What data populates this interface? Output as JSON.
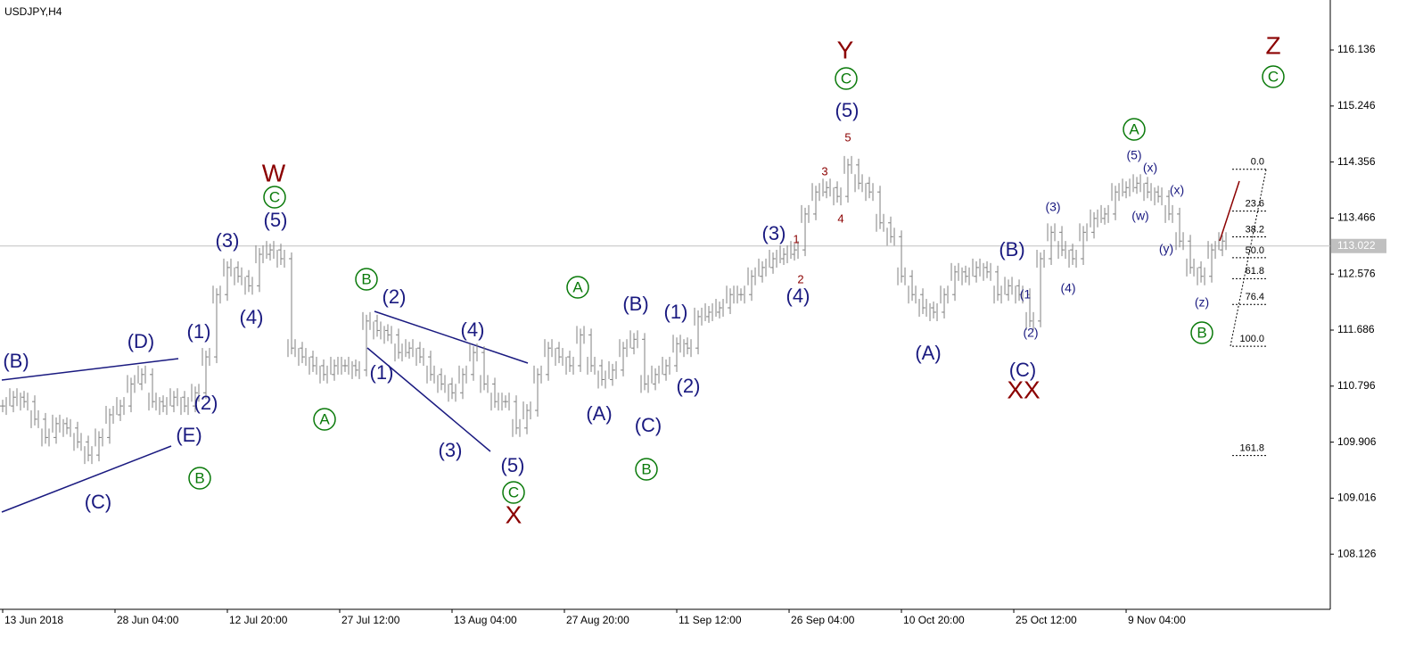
{
  "chart_data": {
    "type": "ohlc",
    "title": "USDJPY,H4",
    "series": [
      {
        "color": "#808080",
        "values": [
          110.48,
          110.62,
          110.55,
          110.27,
          109.98,
          110.2,
          110.13,
          109.91,
          109.7,
          109.98,
          110.34,
          110.48,
          110.83,
          110.98,
          110.55,
          110.48,
          110.62,
          110.48,
          110.69,
          111.26,
          112.25,
          112.68,
          112.54,
          112.39,
          112.89,
          112.96,
          112.82,
          111.4,
          111.26,
          111.12,
          110.98,
          111.12,
          111.12,
          111.05,
          111.83,
          111.68,
          111.61,
          111.33,
          111.4,
          111.26,
          110.98,
          110.83,
          110.69,
          110.98,
          111.33,
          110.83,
          110.55,
          110.55,
          110.13,
          110.41,
          110.98,
          111.4,
          111.26,
          111.12,
          111.61,
          111.12,
          110.9,
          111.05,
          111.4,
          111.54,
          110.83,
          110.98,
          111.12,
          111.47,
          111.4,
          111.9,
          111.97,
          112.04,
          112.25,
          112.25,
          112.54,
          112.68,
          112.82,
          112.89,
          112.96,
          113.53,
          113.88,
          113.95,
          113.81,
          114.31,
          114.02,
          113.88,
          113.39,
          113.17,
          112.54,
          112.25,
          112.04,
          111.97,
          112.25,
          112.61,
          112.54,
          112.68,
          112.61,
          112.25,
          112.39,
          112.25,
          111.83,
          112.82,
          113.24,
          112.96,
          112.82,
          113.24,
          113.46,
          113.53,
          113.88,
          113.95,
          114.02,
          113.88,
          113.81,
          113.53,
          113.1,
          112.68,
          112.54,
          112.96,
          113.1
        ]
      }
    ],
    "xlim": [
      -0.25,
      124.08
    ],
    "xticks": [
      {
        "value": 0,
        "label": "13 Jun 2018"
      },
      {
        "value": 10.5,
        "label": "28 Jun 04:00"
      },
      {
        "value": 21,
        "label": "12 Jul 20:00"
      },
      {
        "value": 31.5,
        "label": "27 Jul 12:00"
      },
      {
        "value": 42,
        "label": "13 Aug 04:00"
      },
      {
        "value": 52.5,
        "label": "27 Aug 20:00"
      },
      {
        "value": 63,
        "label": "11 Sep 12:00"
      },
      {
        "value": 73.5,
        "label": "26 Sep 04:00"
      },
      {
        "value": 84,
        "label": "10 Oct 20:00"
      },
      {
        "value": 94.5,
        "label": "25 Oct 12:00"
      },
      {
        "value": 105,
        "label": "9 Nov 04:00"
      }
    ],
    "ylim": [
      107.25,
      116.93
    ],
    "yticks": [
      108.126,
      109.016,
      109.906,
      110.796,
      111.686,
      112.576,
      113.466,
      114.356,
      115.246,
      116.136
    ],
    "last_price": 113.022,
    "annotations": [
      "(B)",
      "(D)",
      "(C)",
      "(E)",
      "(1)",
      "(2)",
      "(3)",
      "(4)",
      "(5)",
      "(2)",
      "(1)",
      "(3)",
      "(4)",
      "(5)",
      "(A)",
      "(B)",
      "(C)",
      "(1)",
      "(2)",
      "(3)",
      "(4)",
      "(5)",
      "(A)",
      "(B)",
      "(C)",
      "(3)",
      "(4)",
      "(1",
      "(2)",
      "(5)",
      "(x)",
      "(x)",
      "(w)",
      "(y)",
      "(z)",
      "B",
      "A",
      "C",
      "B",
      "C",
      "A",
      "B",
      "C",
      "A",
      "B",
      "C",
      "W",
      "X",
      "Y",
      "XX",
      "Z",
      "1",
      "2",
      "3",
      "4",
      "5"
    ],
    "fib": {
      "start": 114.24,
      "end": 111.43,
      "levels": [
        {
          "value": 0,
          "label": "0.0"
        },
        23.6,
        38.2,
        {
          "value": 50,
          "label": "50.0"
        },
        61.8,
        76.4,
        {
          "value": 100,
          "label": "100.0"
        },
        161.8
      ]
    }
  }
}
